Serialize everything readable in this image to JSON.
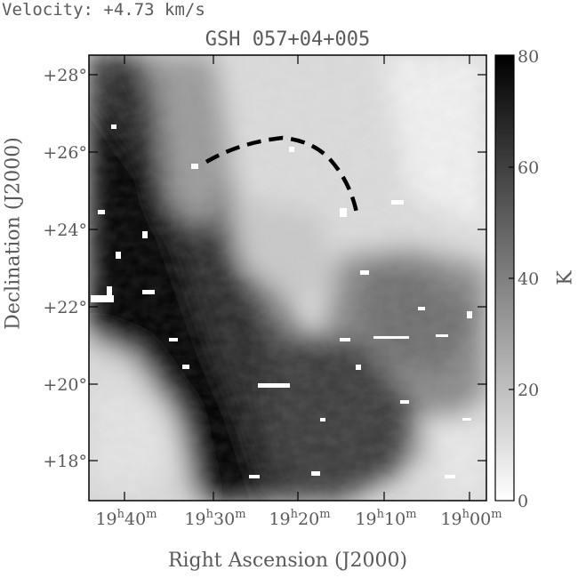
{
  "velocity_label": "Velocity: +4.73 km/s",
  "chart_data": {
    "type": "heatmap",
    "title": "GSH 057+04+005",
    "xlabel": "Right Ascension (J2000)",
    "ylabel": "Declination (J2000)",
    "colorbar_label": "K",
    "colorbar_range": [
      0,
      80
    ],
    "colorbar_ticks": [
      "0",
      "20",
      "40",
      "60",
      "80"
    ],
    "colormap": "grayscale (0 = white, 80 = black)",
    "x_ticks": [
      {
        "h": "19",
        "m": "40"
      },
      {
        "h": "19",
        "m": "30"
      },
      {
        "h": "19",
        "m": "20"
      },
      {
        "h": "19",
        "m": "10"
      },
      {
        "h": "19",
        "m": "00"
      }
    ],
    "y_ticks": [
      "+28°",
      "+26°",
      "+24°",
      "+22°",
      "+20°",
      "+18°"
    ],
    "annotations": [
      {
        "type": "dashed-arc",
        "description": "shell boundary outline",
        "color": "#000000"
      }
    ]
  }
}
